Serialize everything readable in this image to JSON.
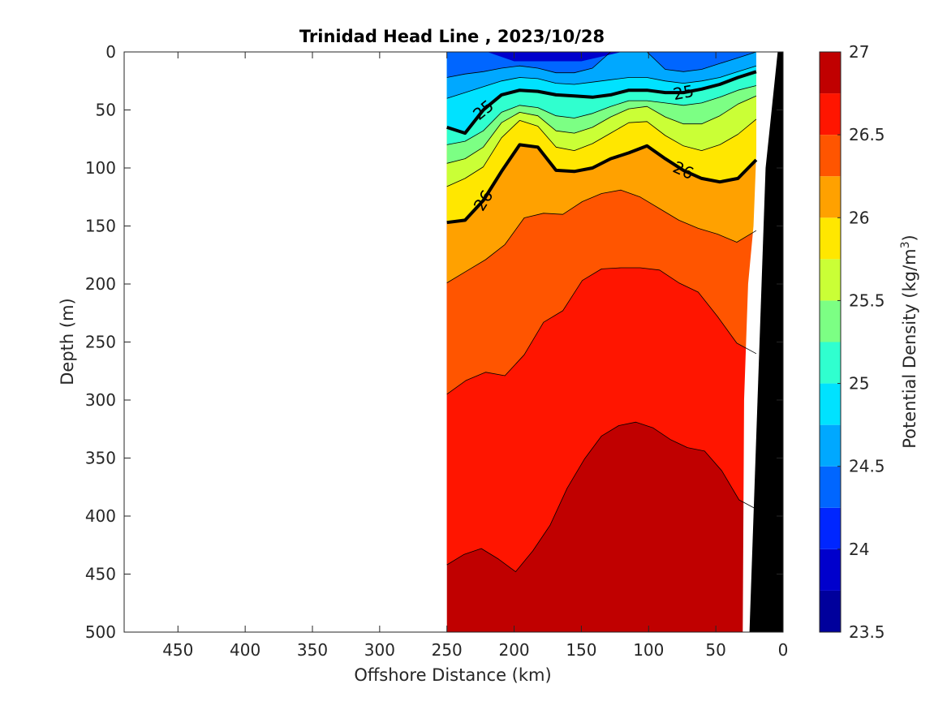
{
  "chart_data": {
    "type": "heatmap",
    "title": "Trinidad Head Line , 2023/10/28",
    "xlabel": "Offshore Distance (km)",
    "ylabel": "Depth (m)",
    "x_reversed": true,
    "y_reversed": true,
    "xlim": [
      0,
      490
    ],
    "ylim": [
      0,
      500
    ],
    "xticks": [
      450,
      400,
      350,
      300,
      250,
      200,
      150,
      100,
      50,
      0
    ],
    "yticks": [
      0,
      50,
      100,
      150,
      200,
      250,
      300,
      350,
      400,
      450,
      500
    ],
    "data_extent_km": [
      20,
      250
    ],
    "colorbar": {
      "label": "Potential Density (kg/m",
      "label_superscript": "3",
      "label_suffix": ")",
      "range": [
        23.5,
        27
      ],
      "ticks": [
        23.5,
        24,
        24.5,
        25,
        25.5,
        26,
        26.5,
        27
      ],
      "levels": [
        23.5,
        23.75,
        24,
        24.25,
        24.5,
        24.75,
        25,
        25.25,
        25.5,
        25.75,
        26,
        26.25,
        26.5,
        26.75,
        27
      ],
      "colors": [
        "#00009c",
        "#0000cc",
        "#0026ff",
        "#0066ff",
        "#00a8ff",
        "#00e2ff",
        "#30ffcf",
        "#7cff84",
        "#caff36",
        "#ffe700",
        "#ffa100",
        "#ff5500",
        "#ff1500",
        "#c00000"
      ]
    },
    "contours": [
      {
        "level": 26.75,
        "depth": [
          442,
          433,
          428,
          437,
          448,
          430,
          408,
          376,
          351,
          331,
          322,
          319,
          324,
          334,
          341,
          344,
          361,
          386,
          394
        ]
      },
      {
        "level": 26.5,
        "depth": [
          295,
          283,
          276,
          279,
          261,
          233,
          223,
          197,
          187,
          186,
          186,
          188,
          199,
          207,
          228,
          251,
          260
        ]
      },
      {
        "level": 26.25,
        "depth": [
          199,
          189,
          179,
          166,
          143,
          139,
          140,
          129,
          122,
          119,
          125,
          135,
          145,
          152,
          157,
          164,
          154
        ]
      },
      {
        "level": 26.0,
        "depth": [
          147,
          145,
          128,
          103,
          80,
          82,
          102,
          103,
          100,
          92,
          87,
          81,
          92,
          102,
          109,
          112,
          109,
          93
        ]
      },
      {
        "level": 25.75,
        "depth": [
          116,
          109,
          99,
          74,
          59,
          64,
          82,
          85,
          79,
          70,
          61,
          60,
          72,
          81,
          85,
          80,
          71,
          58
        ]
      },
      {
        "level": 25.5,
        "depth": [
          96,
          92,
          82,
          61,
          52,
          55,
          68,
          70,
          65,
          56,
          49,
          47,
          56,
          62,
          62,
          55,
          45,
          38
        ]
      },
      {
        "level": 25.25,
        "depth": [
          80,
          77,
          68,
          52,
          46,
          48,
          55,
          57,
          53,
          47,
          42,
          42,
          44,
          46,
          44,
          39,
          33,
          29
        ]
      },
      {
        "level": 25.0,
        "depth": [
          65,
          70,
          50,
          37,
          33,
          34,
          37,
          38,
          39,
          37,
          33,
          33,
          35,
          35,
          32,
          28,
          22,
          17
        ]
      },
      {
        "level": 24.75,
        "depth": [
          40,
          35,
          30,
          25,
          22,
          23,
          27,
          28,
          26,
          24,
          22,
          22,
          25,
          27,
          25,
          22,
          17,
          12
        ]
      },
      {
        "level": 24.5,
        "depth": [
          22,
          19,
          17,
          14,
          12,
          14,
          18,
          18,
          14,
          0,
          0,
          0,
          15,
          17,
          15,
          10,
          5,
          0
        ]
      }
    ],
    "highlighted_contours": [
      25,
      26
    ]
  }
}
